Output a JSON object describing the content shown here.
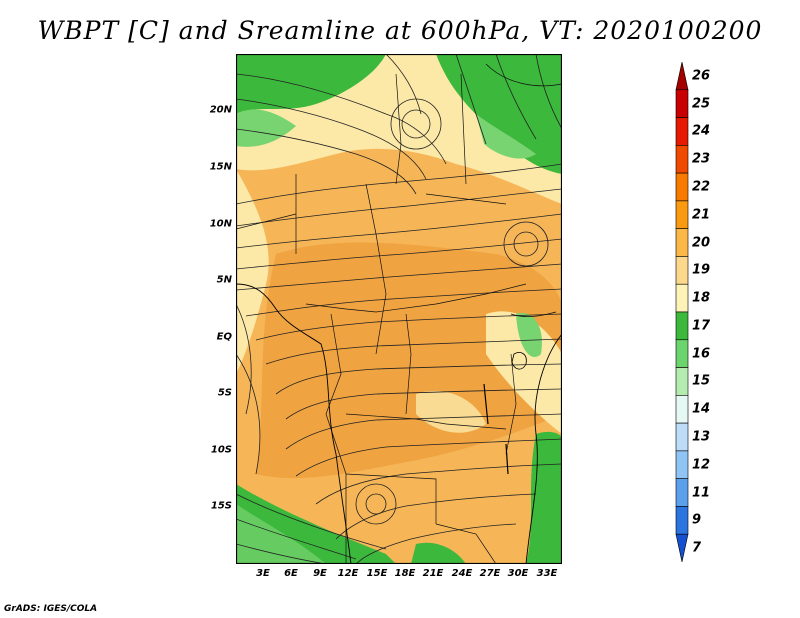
{
  "title": "WBPT [C] and Sreamline at 600hPa, VT: 2020100200",
  "credit": "GrADS: IGES/COLA",
  "lat_labels": [
    "20N",
    "15N",
    "10N",
    "5N",
    "EQ",
    "5S",
    "10S",
    "15S"
  ],
  "lon_labels": [
    "3E",
    "6E",
    "9E",
    "12E",
    "15E",
    "18E",
    "21E",
    "24E",
    "27E",
    "30E",
    "33E"
  ],
  "colorbar": {
    "labels": [
      "26",
      "25",
      "24",
      "23",
      "22",
      "21",
      "20",
      "19",
      "18",
      "17",
      "16",
      "15",
      "14",
      "13",
      "12",
      "11",
      "9",
      "7"
    ],
    "colors": [
      "#a50000",
      "#c80000",
      "#e51a00",
      "#f04a00",
      "#f87a00",
      "#fa9a10",
      "#fbb848",
      "#fcd88c",
      "#fdf2b8",
      "#3cb83c",
      "#6cd46c",
      "#b4ecb0",
      "#e6f8f4",
      "#bcdcf8",
      "#90c4f4",
      "#5ca0ec",
      "#2c74e0",
      "#1450d0"
    ]
  },
  "palette": {
    "green": "#3cb83c",
    "light_green": "#78d470",
    "pale_yellow": "#fce9a8",
    "orange": "#f6b658",
    "dark_orange": "#ee9c3a",
    "streamline": "#222222"
  }
}
